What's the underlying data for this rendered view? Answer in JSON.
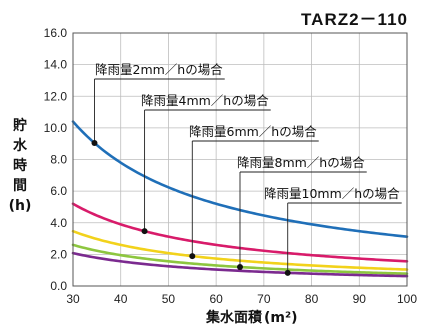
{
  "chart_data": {
    "type": "line",
    "title": "TARZ2－110",
    "ylabel_chars": [
      "貯",
      "水",
      "時",
      "間",
      "(h)"
    ],
    "xlabel": "集水面積",
    "xlabel_unit": "(m²)",
    "xlim": [
      30,
      100
    ],
    "ylim": [
      0,
      16
    ],
    "xticks": [
      "30",
      "40",
      "50",
      "60",
      "70",
      "80",
      "90",
      "100"
    ],
    "yticks": [
      "0.0",
      "2.0",
      "4.0",
      "6.0",
      "8.0",
      "10.0",
      "12.0",
      "14.0",
      "16.0"
    ],
    "grid": true,
    "series": [
      {
        "name": "降雨量2mm／hの場合",
        "color": "#1f6fb8",
        "k": 312,
        "marker_x": 34.5
      },
      {
        "name": "降雨量4mm／hの場合",
        "color": "#d81b6a",
        "k": 156,
        "marker_x": 45
      },
      {
        "name": "降雨量6mm／hの場合",
        "color": "#f2d21b",
        "k": 104,
        "marker_x": 55
      },
      {
        "name": "降雨量8mm／hの場合",
        "color": "#8dc63f",
        "k": 78,
        "marker_x": 65
      },
      {
        "name": "降雨量10mm／hの場合",
        "color": "#7b2a8f",
        "k": 62.4,
        "marker_x": 75
      }
    ]
  }
}
